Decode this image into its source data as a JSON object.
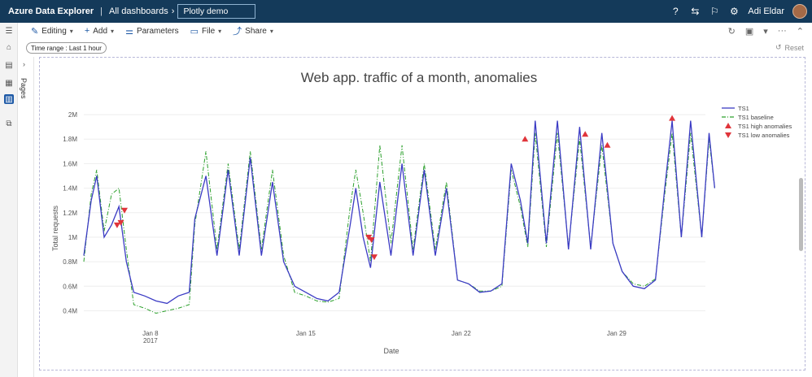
{
  "topbar": {
    "app_name": "Azure Data Explorer",
    "breadcrumb": "All dashboards",
    "dashboard_title": "Plotly demo",
    "user_name": "Adi Eldar"
  },
  "toolbar": {
    "editing": "Editing",
    "add": "Add",
    "parameters": "Parameters",
    "file": "File",
    "share": "Share"
  },
  "filters": {
    "time_range": "Time range : Last 1 hour",
    "reset": "Reset"
  },
  "pages": {
    "label": "Pages"
  },
  "colors": {
    "ts1": "#3b3bc4",
    "baseline": "#2ca02c",
    "anomaly": "#e0343a",
    "topbar": "#143a5a"
  },
  "chart_data": {
    "type": "line",
    "title": "Web app. traffic of a month, anomalies",
    "xlabel": "Date",
    "ylabel": "Total requests",
    "x_ticks": [
      "Jan 8",
      "Jan 15",
      "Jan 22",
      "Jan 29"
    ],
    "x_tick_sub": "2017",
    "y_ticks": [
      "0.4M",
      "0.6M",
      "0.8M",
      "1M",
      "1.2M",
      "1.4M",
      "1.6M",
      "1.8M",
      "2M"
    ],
    "xlim": [
      "2017-01-05",
      "2017-02-02"
    ],
    "ylim": [
      0.33,
      2.08
    ],
    "legend_position": "top-right",
    "series": [
      {
        "name": "TS1",
        "points": [
          [
            "2017-01-05",
            0.85
          ],
          [
            "2017-01-05T08:00",
            1.3
          ],
          [
            "2017-01-05T14:00",
            1.5
          ],
          [
            "2017-01-05T22:00",
            1.0
          ],
          [
            "2017-01-06T06:00",
            1.1
          ],
          [
            "2017-01-06T14:00",
            1.25
          ],
          [
            "2017-01-06T22:00",
            0.8
          ],
          [
            "2017-01-07T06:00",
            0.55
          ],
          [
            "2017-01-07T18:00",
            0.52
          ],
          [
            "2017-01-08T06:00",
            0.48
          ],
          [
            "2017-01-08T18:00",
            0.46
          ],
          [
            "2017-01-09T06:00",
            0.52
          ],
          [
            "2017-01-09T18:00",
            0.55
          ],
          [
            "2017-01-10",
            1.15
          ],
          [
            "2017-01-10T12:00",
            1.5
          ],
          [
            "2017-01-11",
            0.85
          ],
          [
            "2017-01-11T12:00",
            1.55
          ],
          [
            "2017-01-12",
            0.85
          ],
          [
            "2017-01-12T12:00",
            1.65
          ],
          [
            "2017-01-13",
            0.85
          ],
          [
            "2017-01-13T12:00",
            1.45
          ],
          [
            "2017-01-14",
            0.8
          ],
          [
            "2017-01-14T12:00",
            0.6
          ],
          [
            "2017-01-15",
            0.55
          ],
          [
            "2017-01-15T12:00",
            0.5
          ],
          [
            "2017-01-16",
            0.48
          ],
          [
            "2017-01-16T12:00",
            0.55
          ],
          [
            "2017-01-17",
            1.1
          ],
          [
            "2017-01-17T06:00",
            1.4
          ],
          [
            "2017-01-17T14:00",
            1.0
          ],
          [
            "2017-01-17T22:00",
            0.75
          ],
          [
            "2017-01-18T08:00",
            1.45
          ],
          [
            "2017-01-18T20:00",
            0.85
          ],
          [
            "2017-01-19T08:00",
            1.6
          ],
          [
            "2017-01-19T20:00",
            0.85
          ],
          [
            "2017-01-20T08:00",
            1.55
          ],
          [
            "2017-01-20T20:00",
            0.85
          ],
          [
            "2017-01-21T08:00",
            1.4
          ],
          [
            "2017-01-21T20:00",
            0.65
          ],
          [
            "2017-01-22T08:00",
            0.62
          ],
          [
            "2017-01-22T20:00",
            0.55
          ],
          [
            "2017-01-23T08:00",
            0.56
          ],
          [
            "2017-01-23T20:00",
            0.62
          ],
          [
            "2017-01-24T06:00",
            1.6
          ],
          [
            "2017-01-24T16:00",
            1.3
          ],
          [
            "2017-01-25",
            0.95
          ],
          [
            "2017-01-25T08:00",
            1.95
          ],
          [
            "2017-01-25T20:00",
            0.95
          ],
          [
            "2017-01-26T08:00",
            1.95
          ],
          [
            "2017-01-26T20:00",
            0.9
          ],
          [
            "2017-01-27T08:00",
            1.9
          ],
          [
            "2017-01-27T20:00",
            0.9
          ],
          [
            "2017-01-28T08:00",
            1.85
          ],
          [
            "2017-01-28T20:00",
            0.95
          ],
          [
            "2017-01-29T06:00",
            0.72
          ],
          [
            "2017-01-29T18:00",
            0.6
          ],
          [
            "2017-01-30T06:00",
            0.58
          ],
          [
            "2017-01-30T18:00",
            0.65
          ],
          [
            "2017-01-31T04:00",
            1.4
          ],
          [
            "2017-01-31T12:00",
            1.95
          ],
          [
            "2017-01-31T22:00",
            1.0
          ],
          [
            "2017-02-01T08:00",
            1.95
          ],
          [
            "2017-02-01T20:00",
            1.0
          ],
          [
            "2017-02-02T04:00",
            1.85
          ],
          [
            "2017-02-02T10:00",
            1.4
          ]
        ]
      },
      {
        "name": "TS1 baseline",
        "points": [
          [
            "2017-01-05",
            0.8
          ],
          [
            "2017-01-05T08:00",
            1.35
          ],
          [
            "2017-01-05T14:00",
            1.55
          ],
          [
            "2017-01-05T22:00",
            1.05
          ],
          [
            "2017-01-06T06:00",
            1.35
          ],
          [
            "2017-01-06T14:00",
            1.4
          ],
          [
            "2017-01-06T22:00",
            0.9
          ],
          [
            "2017-01-07T06:00",
            0.45
          ],
          [
            "2017-01-07T18:00",
            0.42
          ],
          [
            "2017-01-08T06:00",
            0.38
          ],
          [
            "2017-01-08T18:00",
            0.4
          ],
          [
            "2017-01-09T06:00",
            0.42
          ],
          [
            "2017-01-09T18:00",
            0.45
          ],
          [
            "2017-01-10",
            1.1
          ],
          [
            "2017-01-10T12:00",
            1.7
          ],
          [
            "2017-01-11",
            0.9
          ],
          [
            "2017-01-11T12:00",
            1.6
          ],
          [
            "2017-01-12",
            0.9
          ],
          [
            "2017-01-12T12:00",
            1.7
          ],
          [
            "2017-01-13",
            0.9
          ],
          [
            "2017-01-13T12:00",
            1.55
          ],
          [
            "2017-01-14",
            0.85
          ],
          [
            "2017-01-14T12:00",
            0.55
          ],
          [
            "2017-01-15",
            0.52
          ],
          [
            "2017-01-15T12:00",
            0.48
          ],
          [
            "2017-01-16",
            0.47
          ],
          [
            "2017-01-16T12:00",
            0.5
          ],
          [
            "2017-01-17",
            1.25
          ],
          [
            "2017-01-17T06:00",
            1.55
          ],
          [
            "2017-01-17T14:00",
            1.2
          ],
          [
            "2017-01-17T22:00",
            0.8
          ],
          [
            "2017-01-18T08:00",
            1.75
          ],
          [
            "2017-01-18T20:00",
            0.95
          ],
          [
            "2017-01-19T08:00",
            1.75
          ],
          [
            "2017-01-19T20:00",
            0.9
          ],
          [
            "2017-01-20T08:00",
            1.6
          ],
          [
            "2017-01-20T20:00",
            0.9
          ],
          [
            "2017-01-21T08:00",
            1.45
          ],
          [
            "2017-01-21T20:00",
            0.65
          ],
          [
            "2017-01-22T08:00",
            0.62
          ],
          [
            "2017-01-22T20:00",
            0.56
          ],
          [
            "2017-01-23T08:00",
            0.56
          ],
          [
            "2017-01-23T20:00",
            0.6
          ],
          [
            "2017-01-24T06:00",
            1.55
          ],
          [
            "2017-01-24T16:00",
            1.25
          ],
          [
            "2017-01-25",
            0.92
          ],
          [
            "2017-01-25T08:00",
            1.85
          ],
          [
            "2017-01-25T20:00",
            0.92
          ],
          [
            "2017-01-26T08:00",
            1.85
          ],
          [
            "2017-01-26T20:00",
            0.92
          ],
          [
            "2017-01-27T08:00",
            1.8
          ],
          [
            "2017-01-27T20:00",
            0.92
          ],
          [
            "2017-01-28T08:00",
            1.75
          ],
          [
            "2017-01-28T20:00",
            0.95
          ],
          [
            "2017-01-29T06:00",
            0.72
          ],
          [
            "2017-01-29T18:00",
            0.62
          ],
          [
            "2017-01-30T06:00",
            0.6
          ],
          [
            "2017-01-30T18:00",
            0.66
          ],
          [
            "2017-01-31T04:00",
            1.35
          ],
          [
            "2017-01-31T12:00",
            1.85
          ],
          [
            "2017-01-31T22:00",
            1.0
          ],
          [
            "2017-02-01T08:00",
            1.85
          ],
          [
            "2017-02-01T20:00",
            1.0
          ],
          [
            "2017-02-02T04:00",
            1.8
          ],
          [
            "2017-02-02T10:00",
            1.4
          ]
        ]
      },
      {
        "name": "TS1 high anomalies",
        "points": [
          [
            "2017-01-24T21:00",
            1.8
          ],
          [
            "2017-01-27T14:00",
            1.84
          ],
          [
            "2017-01-28T14:00",
            1.75
          ],
          [
            "2017-01-31T12:00",
            1.97
          ]
        ]
      },
      {
        "name": "TS1 low anomalies",
        "points": [
          [
            "2017-01-06T12:00",
            1.1
          ],
          [
            "2017-01-06T16:00",
            1.12
          ],
          [
            "2017-01-06T20:00",
            1.22
          ],
          [
            "2017-01-17T20:00",
            1.0
          ],
          [
            "2017-01-17T23:00",
            0.98
          ],
          [
            "2017-01-18T02:00",
            0.84
          ]
        ]
      }
    ]
  }
}
